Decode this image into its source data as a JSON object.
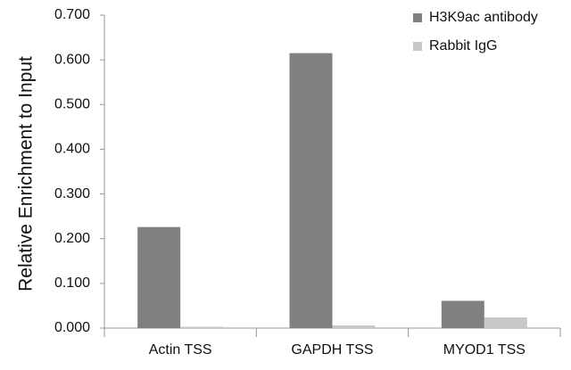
{
  "chart_data": {
    "type": "bar",
    "y_label": "Relative Enrichment to Input",
    "categories": [
      "Actin TSS",
      "GAPDH TSS",
      "MYOD1 TSS"
    ],
    "series": [
      {
        "name": "H3K9ac antibody",
        "color": "#808080",
        "values": [
          0.226,
          0.615,
          0.061
        ]
      },
      {
        "name": "Rabbit IgG",
        "color": "#c8c8c8",
        "values": [
          0.003,
          0.006,
          0.024
        ]
      }
    ],
    "ylim": [
      0,
      0.7
    ],
    "yticks": [
      {
        "value": 0,
        "label": "0.000"
      },
      {
        "value": 0.1,
        "label": "0.100"
      },
      {
        "value": 0.2,
        "label": "0.200"
      },
      {
        "value": 0.3,
        "label": "0.300"
      },
      {
        "value": 0.4,
        "label": "0.400"
      },
      {
        "value": 0.5,
        "label": "0.500"
      },
      {
        "value": 0.6,
        "label": "0.600"
      },
      {
        "value": 0.7,
        "label": "0.700"
      }
    ],
    "grid": false,
    "legend": "upper right"
  }
}
